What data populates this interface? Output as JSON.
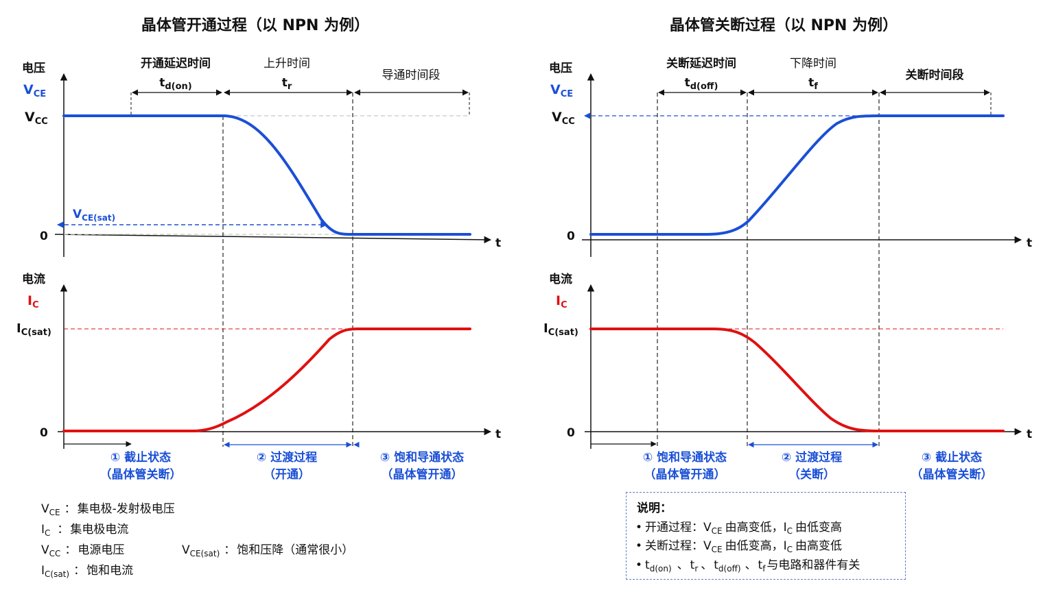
{
  "left": {
    "title": "晶体管开通过程（以 NPN 为例）",
    "voltage_axis": {
      "label": "电压",
      "var": "V",
      "var_sub": "CE"
    },
    "current_axis": {
      "label": "电流",
      "var": "I",
      "var_sub": "C"
    },
    "t_label": "t",
    "vcc": {
      "main": "V",
      "sub": "CC"
    },
    "zero": "0",
    "vce_sat": {
      "main": "V",
      "sub": "CE(sat)"
    },
    "ic_sat": {
      "main": "I",
      "sub": "C(sat)"
    },
    "intervals": [
      {
        "name": "开通延迟时间",
        "sym": "t",
        "sub": "d(on)"
      },
      {
        "name": "上升时间",
        "sym": "t",
        "sub": "r"
      },
      {
        "name": "导通时间段",
        "sym": "",
        "sub": ""
      }
    ],
    "phases": [
      {
        "line1": "① 截止状态",
        "line2": "（晶体管关断）"
      },
      {
        "line1": "② 过渡过程",
        "line2": "（开通）"
      },
      {
        "line1": "③ 饱和导通状态",
        "line2": "（晶体管开通）"
      }
    ]
  },
  "right": {
    "title": "晶体管关断过程（以 NPN 为例）",
    "voltage_axis": {
      "label": "电压",
      "var": "V",
      "var_sub": "CE"
    },
    "current_axis": {
      "label": "电流",
      "var": "I",
      "var_sub": "C"
    },
    "t_label": "t",
    "vcc": {
      "main": "V",
      "sub": "CC"
    },
    "zero": "0",
    "ic_sat": {
      "main": "I",
      "sub": "C(sat)"
    },
    "intervals": [
      {
        "name": "关断延迟时间",
        "sym": "t",
        "sub": "d(off)"
      },
      {
        "name": "下降时间",
        "sym": "t",
        "sub": "f"
      },
      {
        "name": "关断时间段",
        "sym": "",
        "sub": ""
      }
    ],
    "phases": [
      {
        "line1": "① 饱和导通状态",
        "line2": "（晶体管开通）"
      },
      {
        "line1": "② 过渡过程",
        "line2": "（关断）"
      },
      {
        "line1": "③ 截止状态",
        "line2": "（晶体管关断）"
      }
    ]
  },
  "legend": {
    "vce": {
      "main": "V",
      "sub": "CE",
      "sep": "：",
      "desc": "集电极-发射极电压"
    },
    "ic": {
      "main": "I",
      "sub": "C",
      "sep": "：",
      "desc": "集电极电流"
    },
    "vcc": {
      "main": "V",
      "sub": "CC",
      "sep": "：",
      "desc": "电源电压"
    },
    "vcesat": {
      "main": "V",
      "sub": "CE(sat)",
      "sep": "：",
      "desc": "饱和压降（通常很小）"
    },
    "icsat": {
      "main": "I",
      "sub": "C(sat)",
      "sep": "：",
      "desc": "饱和电流"
    }
  },
  "note": {
    "title": "说明：",
    "line1": {
      "bullet": "•",
      "lead": "开通过程：",
      "v": "V",
      "vsub": "CE",
      "mid": "由高变低，",
      "i": "I",
      "isub": "C",
      "tail": "由低变高"
    },
    "line2": {
      "bullet": "•",
      "lead": "关断过程：",
      "v": "V",
      "vsub": "CE",
      "mid": "由低变高，",
      "i": "I",
      "isub": "C",
      "tail": "由高变低"
    },
    "line3": {
      "bullet": "•",
      "t1": "t",
      "t1sub": "d(on)",
      "sep1": "、",
      "t2": "t",
      "t2sub": "r",
      "sep2": "、",
      "t3": "t",
      "t3sub": "d(off)",
      "sep3": "、",
      "t4": "t",
      "t4sub": "f",
      "tail": "与电路和器件有关"
    }
  },
  "colors": {
    "voltage": "#1a4fd6",
    "current": "#e01010",
    "axis": "#111111",
    "guide": "#c8c8c8"
  }
}
